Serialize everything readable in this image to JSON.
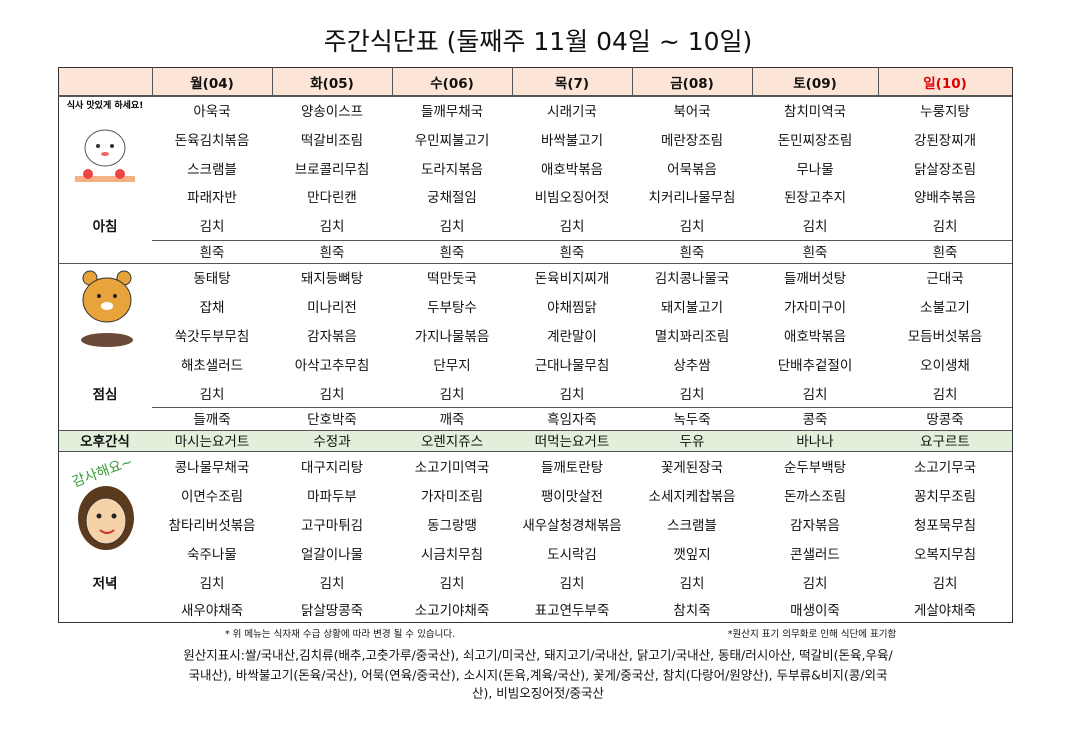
{
  "title": "주간식단표 (둘째주 11월 04일 ~ 10일)",
  "header": {
    "days": [
      "월(04)",
      "화(05)",
      "수(06)",
      "목(7)",
      "금(08)",
      "토(09)",
      "일(10)"
    ]
  },
  "sections": [
    {
      "label": "아침",
      "caption": "식사 맛있게 하세요!",
      "rows": [
        [
          "아욱국",
          "양송이스프",
          "들깨무채국",
          "시래기국",
          "북어국",
          "참치미역국",
          "누룽지탕"
        ],
        [
          "돈육김치볶음",
          "떡갈비조림",
          "우민찌불고기",
          "바싹불고기",
          "메란장조림",
          "돈민찌장조림",
          "강된장찌개"
        ],
        [
          "스크램블",
          "브로콜리무침",
          "도라지볶음",
          "애호박볶음",
          "어묵볶음",
          "무나물",
          "닭살장조림"
        ],
        [
          "파래자반",
          "만다린캔",
          "궁채절임",
          "비빔오징어젓",
          "치커리나물무침",
          "된장고추지",
          "양배추볶음"
        ],
        [
          "김치",
          "김치",
          "김치",
          "김치",
          "김치",
          "김치",
          "김치"
        ],
        [
          "흰죽",
          "흰죽",
          "흰죽",
          "흰죽",
          "흰죽",
          "흰죽",
          "흰죽"
        ]
      ]
    },
    {
      "label": "점심",
      "rows": [
        [
          "동태탕",
          "돼지등뼈탕",
          "떡만둣국",
          "돈육비지찌개",
          "김치콩나물국",
          "들깨버섯탕",
          "근대국"
        ],
        [
          "잡채",
          "미나리전",
          "두부탕수",
          "야채찜닭",
          "돼지불고기",
          "가자미구이",
          "소불고기"
        ],
        [
          "쑥갓두부무침",
          "감자볶음",
          "가지나물볶음",
          "계란말이",
          "멸치꽈리조림",
          "애호박볶음",
          "모듬버섯볶음"
        ],
        [
          "해초샐러드",
          "아삭고추무침",
          "단무지",
          "근대나물무침",
          "상추쌈",
          "단배추겉절이",
          "오이생채"
        ],
        [
          "김치",
          "김치",
          "김치",
          "김치",
          "김치",
          "김치",
          "김치"
        ],
        [
          "들깨죽",
          "단호박죽",
          "깨죽",
          "흑임자죽",
          "녹두죽",
          "콩죽",
          "땅콩죽"
        ]
      ]
    },
    {
      "label": "오후간식",
      "rows": [
        [
          "마시는요거트",
          "수정과",
          "오렌지쥬스",
          "떠먹는요거트",
          "두유",
          "바나나",
          "요구르트"
        ]
      ]
    },
    {
      "label": "저녁",
      "caption": "감사해요~",
      "rows": [
        [
          "콩나물무채국",
          "대구지리탕",
          "소고기미역국",
          "들깨토란탕",
          "꽃게된장국",
          "순두부백탕",
          "소고기무국"
        ],
        [
          "이면수조림",
          "마파두부",
          "가자미조림",
          "팽이맛살전",
          "소세지케찹볶음",
          "돈까스조림",
          "꽁치무조림"
        ],
        [
          "참타리버섯볶음",
          "고구마튀김",
          "동그랑땡",
          "새우살청경채볶음",
          "스크램블",
          "감자볶음",
          "청포묵무침"
        ],
        [
          "숙주나물",
          "얼갈이나물",
          "시금치무침",
          "도시락김",
          "깻잎지",
          "콘샐러드",
          "오복지무침"
        ],
        [
          "김치",
          "김치",
          "김치",
          "김치",
          "김치",
          "김치",
          "김치"
        ],
        [
          "새우야채죽",
          "닭살땅콩죽",
          "소고기야채죽",
          "표고연두부죽",
          "참치죽",
          "매생이죽",
          "게살야채죽"
        ]
      ]
    }
  ],
  "notes": {
    "left": "* 위 메뉴는 식자재 수급 상황에 따라 변경 될 수 있습니다.",
    "right": "*원산지 표기 의무화로 인해 식단에 표기함"
  },
  "origin": [
    "원산지표시:쌀/국내산,김치류(배추,고춧가루/중국산), 쇠고기/미국산, 돼지고기/국내산, 닭고기/국내산, 동태/러시아산, 떡갈비(돈육,우육/",
    "국내산), 바싹불고기(돈육/국산), 어묵(연육/중국산), 소시지(돈육,계육/국산), 꽃게/중국산,  참치(다랑어/원양산), 두부류&비지(콩/외국",
    "산), 비빔오징어젓/중국산"
  ]
}
